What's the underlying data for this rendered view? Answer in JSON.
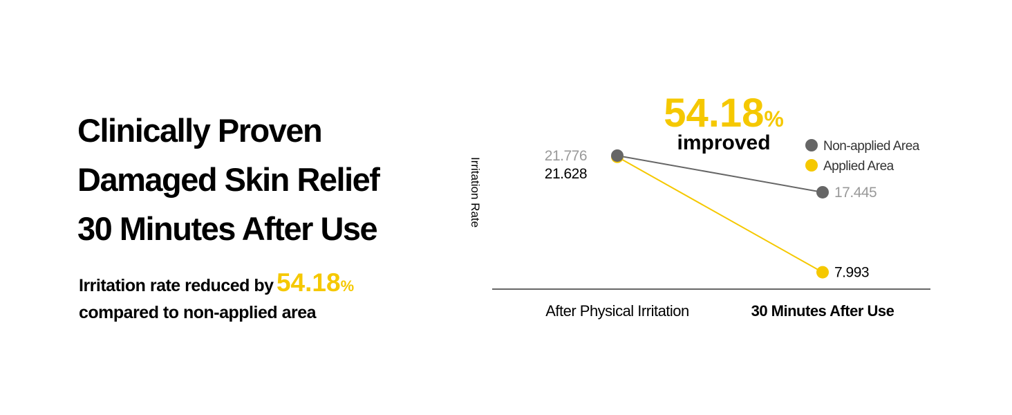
{
  "header": {
    "title_lines": [
      "Clinically Proven",
      "Damaged Skin Relief",
      "30 Minutes After Use"
    ],
    "subtitle": {
      "before": "Irritation rate reduced by",
      "number": "54.18",
      "unit": "%",
      "after": "compared to non-applied area"
    }
  },
  "chart_data": {
    "type": "line",
    "ylabel": "Irritation Rate",
    "annotation": {
      "number": "54.18",
      "unit": "%",
      "text": "improved"
    },
    "categories": [
      "After Physical Irritation",
      "30 Minutes After Use"
    ],
    "series": [
      {
        "name": "Non-applied Area",
        "color": "#666666",
        "values": [
          21.776,
          17.445
        ]
      },
      {
        "name": "Applied Area",
        "color": "#f5c800",
        "values": [
          21.628,
          7.993
        ]
      }
    ],
    "ylim": [
      6,
      23
    ],
    "legend": "top-right"
  }
}
